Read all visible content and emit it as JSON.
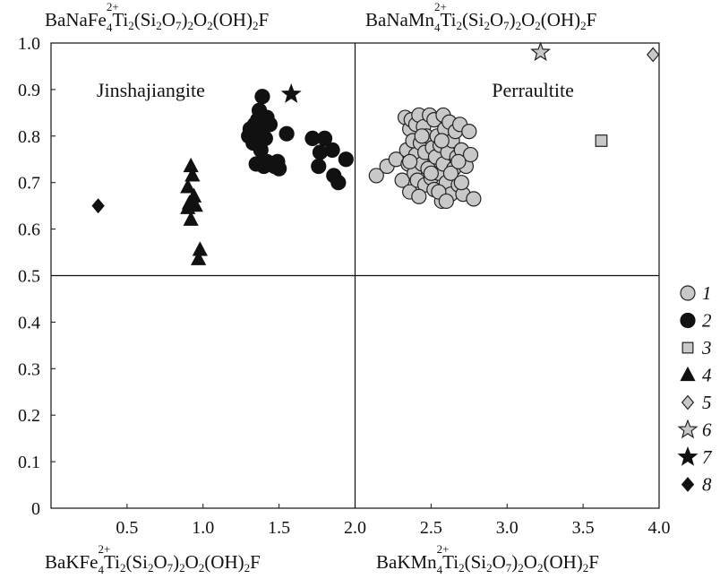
{
  "formulas": {
    "top_left": {
      "p1": "BaNaFe",
      "charge": "2+",
      "n": "4",
      "p2": "Ti",
      "s1": "2",
      "p3": "(Si",
      "s2": "2",
      "p4": "O",
      "s3": "7",
      "p5": ")",
      "s4": "2",
      "p6": "O",
      "s5": "2",
      "p7": "(OH)",
      "s6": "2",
      "p8": "F"
    },
    "top_right": {
      "p1": "BaNaMn",
      "charge": "2+",
      "n": "4",
      "p2": "Ti",
      "s1": "2",
      "p3": "(Si",
      "s2": "2",
      "p4": "O",
      "s3": "7",
      "p5": ")",
      "s4": "2",
      "p6": "O",
      "s5": "2",
      "p7": "(OH)",
      "s6": "2",
      "p8": "F"
    },
    "bottom_left": {
      "p1": "BaKFe",
      "charge": "2+",
      "n": "4",
      "p2": "Ti",
      "s1": "2",
      "p3": "(Si",
      "s2": "2",
      "p4": "O",
      "s3": "7",
      "p5": ")",
      "s4": "2",
      "p6": "O",
      "s5": "2",
      "p7": "(OH)",
      "s6": "2",
      "p8": "F"
    },
    "bottom_right": {
      "p1": "BaKMn",
      "charge": "2+",
      "n": "4",
      "p2": "Ti",
      "s1": "2",
      "p3": "(Si",
      "s2": "2",
      "p4": "O",
      "s3": "7",
      "p5": ")",
      "s4": "2",
      "p6": "O",
      "s5": "2",
      "p7": "(OH)",
      "s6": "2",
      "p8": "F"
    }
  },
  "chart_data": {
    "type": "scatter",
    "xlim": [
      0,
      4.0
    ],
    "ylim": [
      0,
      1.0
    ],
    "x_ticks": [
      {
        "v": 0.5,
        "label": "0.5"
      },
      {
        "v": 1.0,
        "label": "1.0"
      },
      {
        "v": 1.5,
        "label": "1.5"
      },
      {
        "v": 2.0,
        "label": "2.0"
      },
      {
        "v": 2.5,
        "label": "2.5"
      },
      {
        "v": 3.0,
        "label": "3.0"
      },
      {
        "v": 3.5,
        "label": "3.5"
      },
      {
        "v": 4.0,
        "label": "4.0"
      }
    ],
    "y_ticks": [
      {
        "v": 0,
        "label": "0"
      },
      {
        "v": 0.1,
        "label": "0.1"
      },
      {
        "v": 0.2,
        "label": "0.2"
      },
      {
        "v": 0.3,
        "label": "0.3"
      },
      {
        "v": 0.4,
        "label": "0.4"
      },
      {
        "v": 0.5,
        "label": "0.5"
      },
      {
        "v": 0.6,
        "label": "0.6"
      },
      {
        "v": 0.7,
        "label": "0.7"
      },
      {
        "v": 0.8,
        "label": "0.8"
      },
      {
        "v": 0.9,
        "label": "0.9"
      },
      {
        "v": 1.0,
        "label": "1.0"
      }
    ],
    "dividers": {
      "x": 2.0,
      "y": 0.5
    },
    "region_labels": [
      {
        "text": "Jinshajiangite",
        "x": 0.3,
        "y": 0.9
      },
      {
        "text": "Perraultite",
        "x": 2.9,
        "y": 0.9
      }
    ],
    "legend_position": "right",
    "series": [
      {
        "name": "1",
        "marker": "circle",
        "fill": "#c8c8c8",
        "stroke": "#222222",
        "x": [
          2.14,
          2.21,
          2.27,
          2.31,
          2.33,
          2.34,
          2.35,
          2.36,
          2.36,
          2.37,
          2.38,
          2.39,
          2.4,
          2.4,
          2.41,
          2.42,
          2.43,
          2.44,
          2.45,
          2.46,
          2.46,
          2.47,
          2.48,
          2.49,
          2.5,
          2.51,
          2.52,
          2.52,
          2.53,
          2.54,
          2.55,
          2.56,
          2.57,
          2.58,
          2.58,
          2.59,
          2.6,
          2.61,
          2.62,
          2.63,
          2.64,
          2.65,
          2.66,
          2.67,
          2.68,
          2.69,
          2.7,
          2.71,
          2.73,
          2.75,
          2.76,
          2.78,
          2.42,
          2.5,
          2.57,
          2.63,
          2.68,
          2.36,
          2.44,
          2.55,
          2.6,
          2.7
        ],
        "y": [
          0.715,
          0.735,
          0.75,
          0.705,
          0.84,
          0.77,
          0.74,
          0.68,
          0.815,
          0.835,
          0.79,
          0.72,
          0.76,
          0.825,
          0.705,
          0.845,
          0.785,
          0.74,
          0.82,
          0.695,
          0.765,
          0.8,
          0.73,
          0.845,
          0.71,
          0.775,
          0.835,
          0.685,
          0.755,
          0.8,
          0.72,
          0.78,
          0.66,
          0.845,
          0.74,
          0.815,
          0.7,
          0.765,
          0.83,
          0.675,
          0.79,
          0.73,
          0.81,
          0.755,
          0.695,
          0.825,
          0.77,
          0.675,
          0.735,
          0.81,
          0.76,
          0.665,
          0.67,
          0.72,
          0.79,
          0.72,
          0.745,
          0.745,
          0.8,
          0.68,
          0.66,
          0.7
        ]
      },
      {
        "name": "2",
        "marker": "circle",
        "fill": "#111111",
        "stroke": "#111111",
        "x": [
          1.3,
          1.31,
          1.33,
          1.34,
          1.35,
          1.36,
          1.36,
          1.37,
          1.38,
          1.38,
          1.39,
          1.4,
          1.41,
          1.42,
          1.44,
          1.47,
          1.49,
          1.5,
          1.55,
          1.72,
          1.76,
          1.77,
          1.8,
          1.85,
          1.86,
          1.89,
          1.94,
          1.35,
          1.42
        ],
        "y": [
          0.8,
          0.815,
          0.785,
          0.825,
          0.74,
          0.8,
          0.835,
          0.855,
          0.77,
          0.81,
          0.885,
          0.735,
          0.795,
          0.745,
          0.825,
          0.735,
          0.745,
          0.73,
          0.805,
          0.795,
          0.735,
          0.765,
          0.795,
          0.77,
          0.715,
          0.7,
          0.75,
          0.815,
          0.84
        ]
      },
      {
        "name": "3",
        "marker": "square",
        "fill": "#c8c8c8",
        "stroke": "#222222",
        "x": [
          3.62
        ],
        "y": [
          0.79
        ]
      },
      {
        "name": "4",
        "marker": "triangle",
        "fill": "#111111",
        "stroke": "#111111",
        "x": [
          0.92,
          0.93,
          0.9,
          0.94,
          0.91,
          0.95,
          0.9,
          0.92,
          0.98,
          0.97
        ],
        "y": [
          0.735,
          0.715,
          0.69,
          0.67,
          0.655,
          0.65,
          0.645,
          0.62,
          0.555,
          0.535
        ]
      },
      {
        "name": "5",
        "marker": "diamond",
        "fill": "#c8c8c8",
        "stroke": "#222222",
        "x": [
          3.96
        ],
        "y": [
          0.975
        ]
      },
      {
        "name": "6",
        "marker": "star",
        "fill": "#c8c8c8",
        "stroke": "#222222",
        "x": [
          3.22
        ],
        "y": [
          0.98
        ]
      },
      {
        "name": "7",
        "marker": "star",
        "fill": "#111111",
        "stroke": "#111111",
        "x": [
          1.58
        ],
        "y": [
          0.89
        ]
      },
      {
        "name": "8",
        "marker": "diamond",
        "fill": "#111111",
        "stroke": "#111111",
        "x": [
          0.31
        ],
        "y": [
          0.65
        ]
      }
    ]
  }
}
